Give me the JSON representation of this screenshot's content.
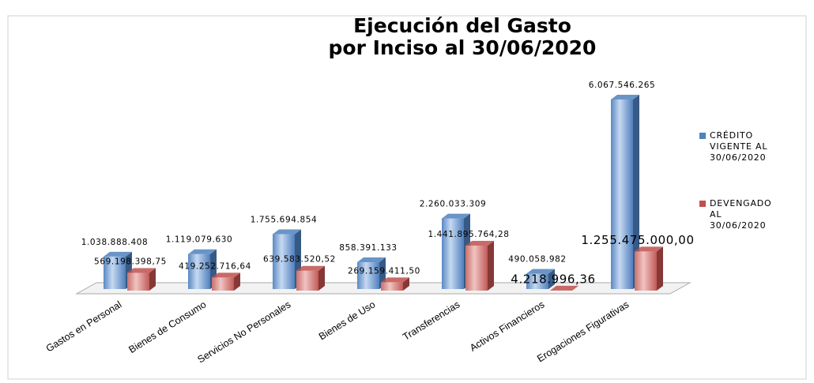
{
  "chart_data": {
    "type": "bar3d",
    "title": [
      "Ejecución del Gasto",
      "por Inciso al 30/06/2020"
    ],
    "categories": [
      "Gastos en Personal",
      "Bienes de Consumo",
      "Servicios No Personales",
      "Bienes de Uso",
      "Transferencias",
      "Activos Financieros",
      "Erogaciones Figurativas"
    ],
    "series": [
      {
        "name": "CRÉDITO VIGENTE AL 30/06/2020",
        "color": "#4f81bd",
        "values": [
          1038888408,
          1119079630,
          1755694854,
          858391133,
          2260033309,
          490058982,
          6067546265
        ],
        "value_labels": [
          "1.038.888.408",
          "1.119.079.630",
          "1.755.694.854",
          "858.391.133",
          "2.260.033.309",
          "490.058.982",
          "6.067.546.265"
        ]
      },
      {
        "name": "DEVENGADO AL 30/06/2020",
        "color": "#c0504d",
        "values": [
          569198398.75,
          419252716.64,
          639583520.52,
          269159411.5,
          1441895764.28,
          4218996.36,
          1255475000.0
        ],
        "value_labels": [
          "569.198.398,75",
          "419.252.716,64",
          "639.583.520,52",
          "269.159.411,50",
          "1.441.895.764,28",
          "4.218.996,36",
          "1.255.475.000,00"
        ]
      }
    ],
    "legend": "right"
  }
}
